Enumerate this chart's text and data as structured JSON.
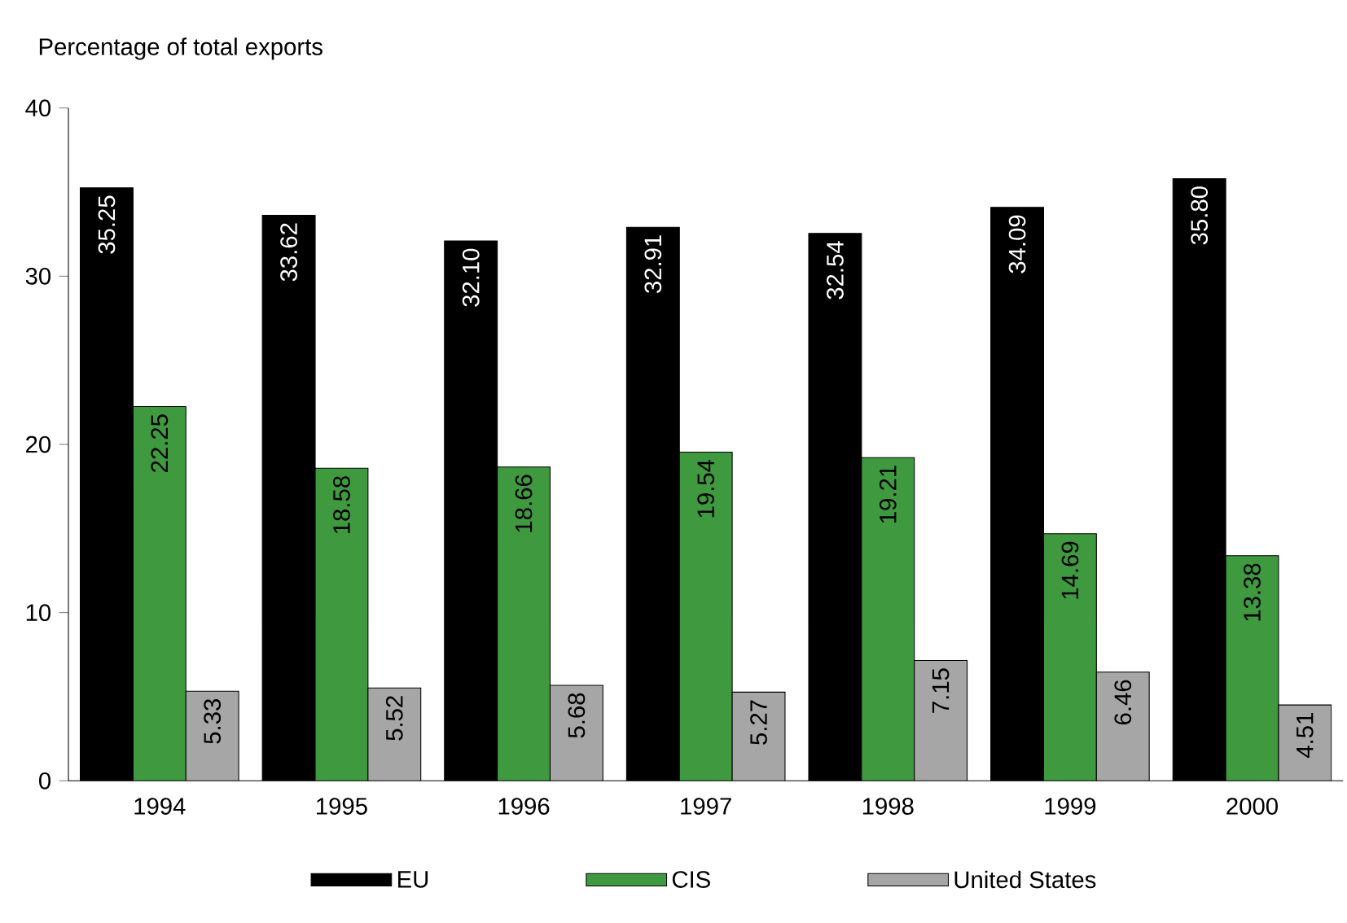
{
  "chart_data": {
    "type": "bar",
    "ylabel": "Percentage of total exports",
    "categories": [
      "1994",
      "1995",
      "1996",
      "1997",
      "1998",
      "1999",
      "2000"
    ],
    "series": [
      {
        "name": "EU",
        "color": "#000000",
        "values": [
          35.25,
          33.62,
          32.1,
          32.91,
          32.54,
          34.09,
          35.8
        ],
        "value_labels": [
          "35.25",
          "33.62",
          "32.10",
          "32.91",
          "32.54",
          "34.09",
          "35.80"
        ]
      },
      {
        "name": "CIS",
        "color": "#3f9a3f",
        "values": [
          22.25,
          18.58,
          18.66,
          19.54,
          19.21,
          14.69,
          13.38
        ],
        "value_labels": [
          "22.25",
          "18.58",
          "18.66",
          "19.54",
          "19.21",
          "14.69",
          "13.38"
        ]
      },
      {
        "name": "United States",
        "color": "#a6a6a6",
        "values": [
          5.33,
          5.52,
          5.68,
          5.27,
          7.15,
          6.46,
          4.51
        ],
        "value_labels": [
          "5.33",
          "5.52",
          "5.68",
          "5.27",
          "7.15",
          "6.46",
          "4.51"
        ]
      }
    ],
    "ylim": [
      0,
      40
    ],
    "yticks": [
      0,
      10,
      20,
      30,
      40
    ],
    "grid": false,
    "legend": "bottom"
  }
}
